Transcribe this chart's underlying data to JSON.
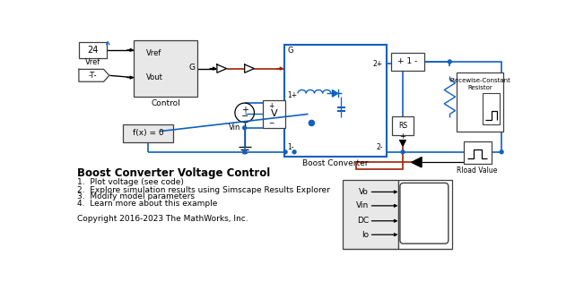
{
  "bg_color": "#ffffff",
  "blkfill": "#e8e8e8",
  "blue": "#1060c0",
  "dark": "#000000",
  "red": "#a02000",
  "blk": "#404040",
  "wfill": "#ffffff",
  "title": "Boost Converter Voltage Control",
  "bullet1": "1.  Plot voltage (see code)",
  "bullet2": "2.  Explore simulation results using Simscape Results Explorer",
  "bullet3": "3.  Modify model parameters",
  "bullet4": "4.  Learn more about this example",
  "copyright": "Copyright 2016-2023 The MathWorks, Inc."
}
